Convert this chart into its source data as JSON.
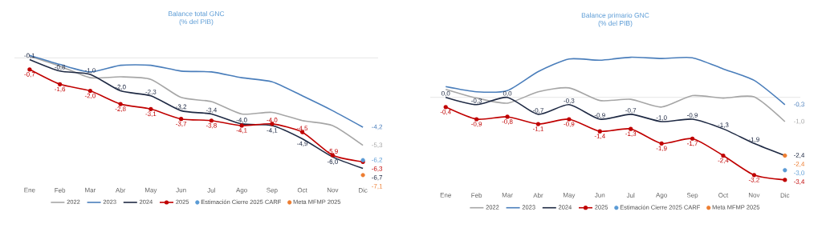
{
  "chart_data": [
    {
      "type": "line",
      "title": "Balance total GNC",
      "subtitle": "(% del PIB)",
      "categories": [
        "Ene",
        "Feb",
        "Mar",
        "Abr",
        "May",
        "Jun",
        "Jul",
        "Ago",
        "Sep",
        "Oct",
        "Nov",
        "Dic"
      ],
      "tick_labels": "x",
      "legend": "bottom",
      "ref_lines": [
        {
          "axis": "y",
          "value": 0,
          "color": "#e0e0e0"
        }
      ],
      "series": [
        {
          "name": "2022",
          "color": "#a6a6a6",
          "marker": "none",
          "values": [
            0.1,
            -0.5,
            -1.2,
            -1.15,
            -1.3,
            -2.4,
            -2.65,
            -3.4,
            -3.3,
            -3.8,
            -4.1,
            -5.3
          ],
          "value_labels": [
            null,
            null,
            null,
            null,
            null,
            null,
            null,
            null,
            null,
            null,
            null,
            "-5,3"
          ]
        },
        {
          "name": "2023",
          "color": "#4a7ebb",
          "marker": "none",
          "values": [
            0.15,
            -0.4,
            -0.85,
            -0.45,
            -0.45,
            -0.8,
            -0.85,
            -1.2,
            -1.45,
            -2.3,
            -3.2,
            -4.2
          ],
          "value_labels": [
            null,
            null,
            null,
            null,
            null,
            null,
            null,
            null,
            null,
            null,
            null,
            "-4,2"
          ]
        },
        {
          "name": "2024",
          "color": "#1f2a44",
          "marker": "none",
          "values": [
            -0.1,
            -0.8,
            -1.0,
            -2.0,
            -2.3,
            -3.2,
            -3.4,
            -4.0,
            -4.1,
            -4.9,
            -6.0,
            -6.7
          ],
          "value_labels": [
            "-0,1",
            "-0,8",
            "-1,0",
            "-2,0",
            "-2,3",
            "-3,2",
            "-3,4",
            "-4,0",
            "-4,1",
            "-4,9",
            "-6,0",
            "-6,7"
          ]
        },
        {
          "name": "2025",
          "color": "#c00000",
          "marker": "circle",
          "values": [
            -0.7,
            -1.6,
            -2.0,
            -2.8,
            -3.1,
            -3.7,
            -3.8,
            -4.1,
            -4.0,
            -4.5,
            -5.9,
            -6.3
          ],
          "value_labels": [
            "-0,7",
            "-1,6",
            "-2,0",
            "-2,8",
            "-3,1",
            "-3,7",
            "-3,8",
            "-4,1",
            "-4,0",
            "-4,5",
            "-5,9",
            "-6,3"
          ]
        },
        {
          "name": "Estimación Cierre 2025 CARF",
          "type": "scatter",
          "color": "#5b9bd5",
          "marker": "circle",
          "values": [
            null,
            null,
            null,
            null,
            null,
            null,
            null,
            null,
            null,
            null,
            null,
            -6.2
          ],
          "value_labels": [
            null,
            null,
            null,
            null,
            null,
            null,
            null,
            null,
            null,
            null,
            null,
            "-6,2"
          ]
        },
        {
          "name": "Meta MFMP 2025",
          "type": "scatter",
          "color": "#ed7d31",
          "marker": "circle",
          "values": [
            null,
            null,
            null,
            null,
            null,
            null,
            null,
            null,
            null,
            null,
            null,
            -7.1
          ],
          "value_labels": [
            null,
            null,
            null,
            null,
            null,
            null,
            null,
            null,
            null,
            null,
            null,
            "-7,1"
          ]
        }
      ]
    },
    {
      "type": "line",
      "title": "Balance primario GNC",
      "subtitle": "(% del PIB)",
      "categories": [
        "Ene",
        "Feb",
        "Mar",
        "Abr",
        "May",
        "Jun",
        "Jul",
        "Ago",
        "Sep",
        "Oct",
        "Nov",
        "Dic"
      ],
      "tick_labels": "x",
      "legend": "bottom",
      "ref_lines": [
        {
          "axis": "y",
          "value": 0,
          "color": "#e0e0e0"
        }
      ],
      "series": [
        {
          "name": "2022",
          "color": "#a6a6a6",
          "marker": "none",
          "values": [
            0.33,
            -0.03,
            -0.24,
            0.23,
            0.39,
            -0.13,
            -0.08,
            -0.4,
            0.07,
            -0.03,
            0.02,
            -1.0
          ],
          "value_labels": [
            null,
            null,
            null,
            null,
            null,
            null,
            null,
            null,
            null,
            null,
            null,
            "-1,0"
          ]
        },
        {
          "name": "2023",
          "color": "#4a7ebb",
          "marker": "none",
          "values": [
            0.44,
            0.23,
            0.28,
            1.06,
            1.58,
            1.53,
            1.65,
            1.6,
            1.63,
            1.17,
            0.7,
            -0.3
          ],
          "value_labels": [
            null,
            null,
            null,
            null,
            null,
            null,
            null,
            null,
            null,
            null,
            null,
            "-0,3"
          ]
        },
        {
          "name": "2024",
          "color": "#1f2a44",
          "marker": "none",
          "values": [
            0.0,
            -0.3,
            0.0,
            -0.7,
            -0.3,
            -0.9,
            -0.7,
            -1.0,
            -0.9,
            -1.3,
            -1.9,
            -2.4
          ],
          "value_labels": [
            "0,0",
            "-0,3",
            "0,0",
            "-0,7",
            "-0,3",
            "-0,9",
            "-0,7",
            "-1,0",
            "-0,9",
            "-1,3",
            "-1,9",
            "-2,4"
          ]
        },
        {
          "name": "2025",
          "color": "#c00000",
          "marker": "circle",
          "values": [
            -0.4,
            -0.9,
            -0.8,
            -1.1,
            -0.9,
            -1.4,
            -1.3,
            -1.9,
            -1.7,
            -2.4,
            -3.2,
            -3.4
          ],
          "value_labels": [
            "-0,4",
            "-0,9",
            "-0,8",
            "-1,1",
            "-0,9",
            "-1,4",
            "-1,3",
            "-1,9",
            "-1,7",
            "-2,4",
            "-3,2",
            "-3,4"
          ]
        },
        {
          "name": "Estimación Cierre 2025 CARF",
          "type": "scatter",
          "color": "#5b9bd5",
          "marker": "circle",
          "values": [
            null,
            null,
            null,
            null,
            null,
            null,
            null,
            null,
            null,
            null,
            null,
            -3.0
          ],
          "value_labels": [
            null,
            null,
            null,
            null,
            null,
            null,
            null,
            null,
            null,
            null,
            null,
            "-3,0"
          ]
        },
        {
          "name": "Meta MFMP 2025",
          "type": "scatter",
          "color": "#ed7d31",
          "marker": "circle",
          "values": [
            null,
            null,
            null,
            null,
            null,
            null,
            null,
            null,
            null,
            null,
            null,
            -2.4
          ],
          "value_labels": [
            null,
            null,
            null,
            null,
            null,
            null,
            null,
            null,
            null,
            null,
            null,
            "-2,4"
          ]
        }
      ]
    }
  ]
}
